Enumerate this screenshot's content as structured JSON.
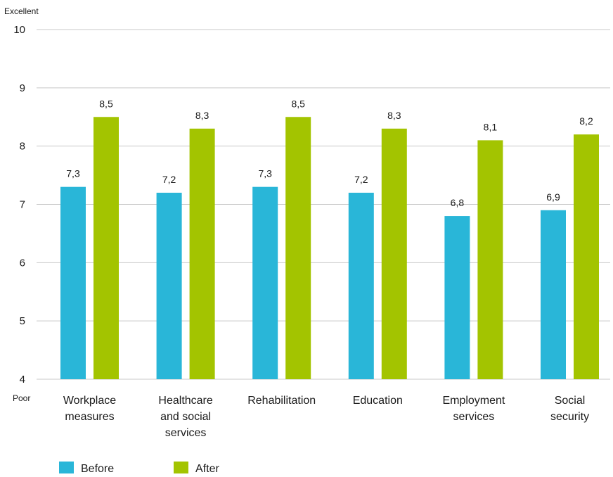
{
  "chart_data": {
    "type": "bar",
    "ylim": [
      4,
      10
    ],
    "yticks": [
      4,
      5,
      6,
      7,
      8,
      9,
      10
    ],
    "top_label": "Excellent",
    "bottom_label": "Poor",
    "categories": [
      [
        "Workplace",
        "measures"
      ],
      [
        "Healthcare",
        "and social",
        "services"
      ],
      [
        "Rehabilitation"
      ],
      [
        "Education"
      ],
      [
        "Employment",
        "services"
      ],
      [
        "Social",
        "security"
      ]
    ],
    "series": [
      {
        "name": "Before",
        "color": "#29b6d8",
        "values": [
          7.3,
          7.2,
          7.3,
          7.2,
          6.8,
          6.9
        ],
        "labels": [
          "7,3",
          "7,2",
          "7,3",
          "7,2",
          "6,8",
          "6,9"
        ]
      },
      {
        "name": "After",
        "color": "#a3c400",
        "values": [
          8.5,
          8.3,
          8.5,
          8.3,
          8.1,
          8.2
        ],
        "labels": [
          "8,5",
          "8,3",
          "8,5",
          "8,3",
          "8,1",
          "8,2"
        ]
      }
    ],
    "grid": true,
    "gridColor": "#c8c8c8",
    "legend": "bottom-left"
  }
}
